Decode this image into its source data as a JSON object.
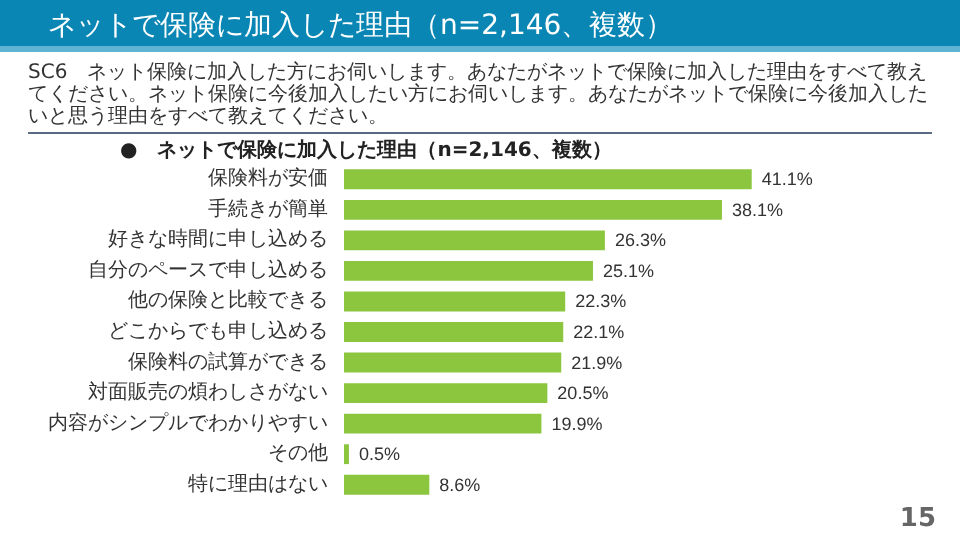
{
  "chart_data": {
    "type": "bar",
    "orientation": "horizontal",
    "title": "ネットで保険に加入した理由（n=2,146、複数）",
    "subtitle": "SC6　ネット保険に加入した方にお伺いします。あなたがネットで保険に加入した理由をすべて教えてください。ネット保険に今後加入したい方にお伺いします。あなたがネットで保険に今後加入したいと思う理由をすべて教えてください。",
    "annotations": [
      "●　ネットで保険に加入した理由（n=2,146、複数）",
      "15"
    ],
    "categories": [
      "保険料が安価",
      "手続きが簡単",
      "好きな時間に申し込める",
      "自分のペースで申し込める",
      "他の保険と比較できる",
      "どこからでも申し込める",
      "保険料の試算ができる",
      "対面販売の煩わしさがない",
      "内容がシンプルでわかりやすい",
      "その他",
      "特に理由はない"
    ],
    "values": [
      41.1,
      38.1,
      26.3,
      25.1,
      22.3,
      22.1,
      21.9,
      20.5,
      19.9,
      0.5,
      8.6
    ],
    "value_labels": [
      "41.1%",
      "38.1%",
      "26.3%",
      "25.1%",
      "22.3%",
      "22.1%",
      "21.9%",
      "20.5%",
      "19.9%",
      "0.5%",
      "8.6%"
    ],
    "color": "#8cc63f"
  }
}
